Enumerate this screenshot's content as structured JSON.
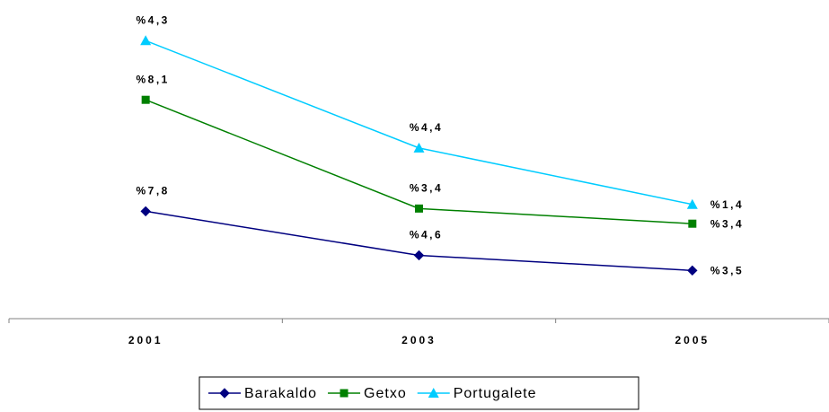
{
  "chart_data": {
    "type": "line",
    "stacked": true,
    "categories": [
      "2001",
      "2003",
      "2005"
    ],
    "series": [
      {
        "name": "Barakaldo",
        "color": "#000080",
        "marker": "diamond",
        "values": [
          7.8,
          4.6,
          3.5
        ],
        "value_labels": [
          "%7,8",
          "%4,6",
          "%3,5"
        ]
      },
      {
        "name": "Getxo",
        "color": "#008000",
        "marker": "square",
        "values": [
          8.1,
          3.4,
          3.4
        ],
        "value_labels": [
          "%8,1",
          "%3,4",
          "%3,4"
        ]
      },
      {
        "name": "Portugalete",
        "color": "#00ccff",
        "marker": "triangle",
        "values": [
          4.3,
          4.4,
          1.4
        ],
        "value_labels": [
          "%4,3",
          "%4,4",
          "%1,4"
        ]
      }
    ],
    "ylim": [
      0,
      22.5
    ],
    "legend": "bottom"
  }
}
